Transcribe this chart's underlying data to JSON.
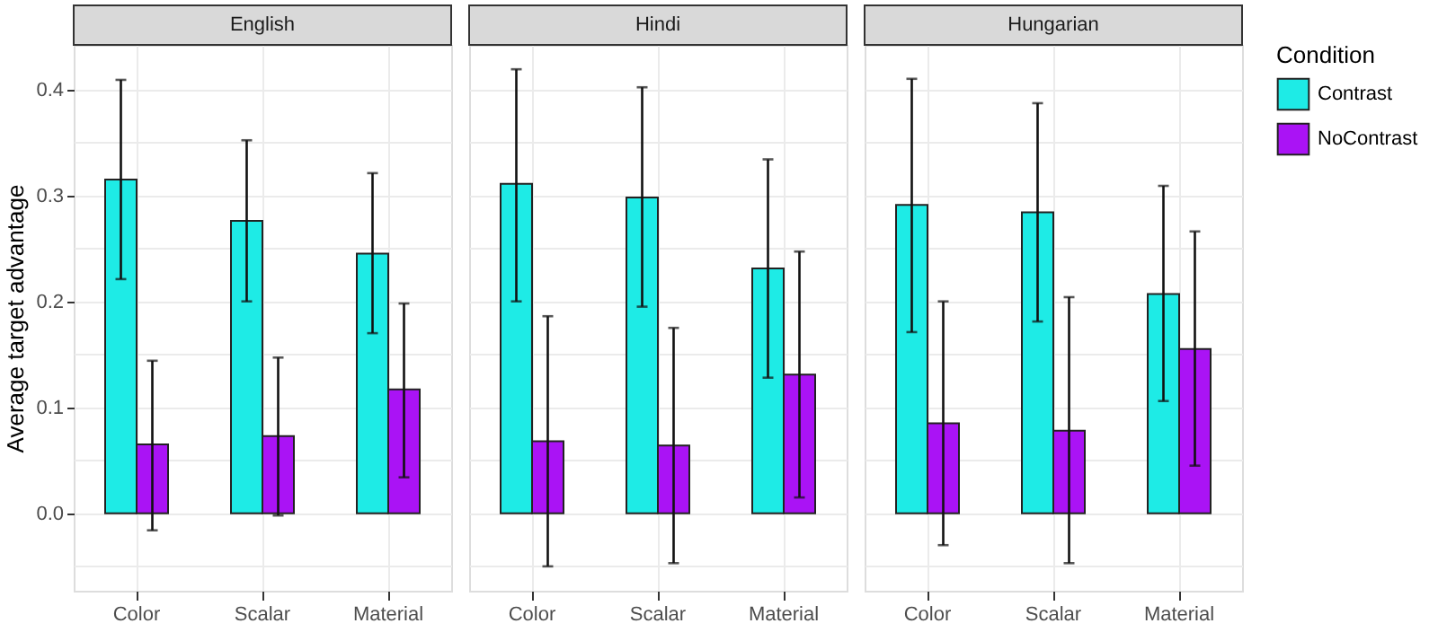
{
  "chart_data": [
    {
      "type": "bar",
      "title": "English",
      "ylabel": "Average target advantage",
      "categories": [
        "Color",
        "Scalar",
        "Material"
      ],
      "legend": "right",
      "series": [
        {
          "name": "Contrast",
          "color": "#1eebe6",
          "values": [
            0.315,
            0.276,
            0.245
          ],
          "errors": [
            [
              0.221,
              0.409
            ],
            [
              0.2,
              0.352
            ],
            [
              0.17,
              0.321
            ]
          ]
        },
        {
          "name": "NoContrast",
          "color": "#aa13f5",
          "values": [
            0.065,
            0.073,
            0.117
          ],
          "errors": [
            [
              -0.016,
              0.144
            ],
            [
              -0.002,
              0.147
            ],
            [
              0.034,
              0.198
            ]
          ]
        }
      ],
      "ylim": [
        -0.073,
        0.442
      ],
      "yticks": [
        {
          "value": -0.05,
          "label": null
        },
        {
          "value": 0,
          "label": "0.0"
        },
        {
          "value": 0.05,
          "label": null
        },
        0.1,
        {
          "value": 0.15,
          "label": null
        },
        0.2,
        {
          "value": 0.25,
          "label": null
        },
        0.3,
        {
          "value": 0.35,
          "label": null
        },
        0.4
      ],
      "grid": true
    },
    {
      "type": "bar",
      "title": "Hindi",
      "categories": [
        "Color",
        "Scalar",
        "Material"
      ],
      "legend": "right",
      "series": [
        {
          "name": "Contrast",
          "color": "#1eebe6",
          "values": [
            0.311,
            0.298,
            0.231
          ],
          "errors": [
            [
              0.2,
              0.419
            ],
            [
              0.195,
              0.402
            ],
            [
              0.128,
              0.334
            ]
          ]
        },
        {
          "name": "NoContrast",
          "color": "#aa13f5",
          "values": [
            0.068,
            0.064,
            0.131
          ],
          "errors": [
            [
              -0.05,
              0.186
            ],
            [
              -0.047,
              0.175
            ],
            [
              0.015,
              0.247
            ]
          ]
        }
      ],
      "ylim": [
        -0.073,
        0.442
      ],
      "yticks": [
        {
          "value": -0.05,
          "label": null
        },
        0,
        {
          "value": 0.05,
          "label": null
        },
        0.1,
        {
          "value": 0.15,
          "label": null
        },
        0.2,
        {
          "value": 0.25,
          "label": null
        },
        0.3,
        {
          "value": 0.35,
          "label": null
        },
        0.4
      ],
      "grid": true,
      "tick_labels": "x"
    },
    {
      "type": "bar",
      "title": "Hungarian",
      "categories": [
        "Color",
        "Scalar",
        "Material"
      ],
      "legend_title": "Condition",
      "legend": "right",
      "series": [
        {
          "name": "Contrast",
          "color": "#1eebe6",
          "values": [
            0.291,
            0.284,
            0.207
          ],
          "errors": [
            [
              0.171,
              0.41
            ],
            [
              0.181,
              0.387
            ],
            [
              0.106,
              0.309
            ]
          ]
        },
        {
          "name": "NoContrast",
          "color": "#aa13f5",
          "values": [
            0.085,
            0.078,
            0.155
          ],
          "errors": [
            [
              -0.03,
              0.2
            ],
            [
              -0.047,
              0.204
            ],
            [
              0.045,
              0.266
            ]
          ]
        }
      ],
      "ylim": [
        -0.073,
        0.442
      ],
      "yticks": [
        {
          "value": -0.05,
          "label": null
        },
        0,
        {
          "value": 0.05,
          "label": null
        },
        0.1,
        {
          "value": 0.15,
          "label": null
        },
        0.2,
        {
          "value": 0.25,
          "label": null
        },
        0.3,
        {
          "value": 0.35,
          "label": null
        },
        0.4
      ],
      "grid": true,
      "tick_labels": "x"
    }
  ]
}
